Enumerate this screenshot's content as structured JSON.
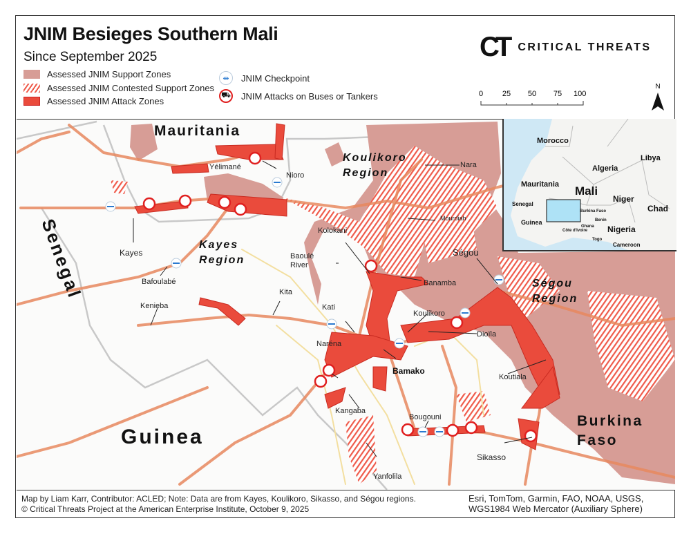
{
  "header": {
    "title": "JNIM Besieges Southern Mali",
    "subtitle": "Since September 2025"
  },
  "legend": {
    "support": "Assessed JNIM Support Zones",
    "contested": "Assessed JNIM Contested Support Zones",
    "attack": "Assessed JNIM Attack Zones",
    "checkpoint": "JNIM Checkpoint",
    "bus_attacks": "JNIM Attacks on Buses or Tankers"
  },
  "colors": {
    "support": "#d79d96",
    "contested": "#ef5a4a",
    "attack": "#ea4b3c",
    "road_major": "#e8895f",
    "road_minor": "#f3dfa0",
    "checkpoint": "#2a7ad0",
    "water": "#cfe8f5"
  },
  "logo": {
    "mark": "CT",
    "text": "CRITICAL THREATS"
  },
  "scale": {
    "ticks": [
      "0",
      "25",
      "50",
      "75",
      "100 Miles"
    ]
  },
  "north": "N",
  "map": {
    "countries": {
      "mauritania": "Mauritania",
      "senegal": "Senegal",
      "guinea": "Guinea",
      "burkina1": "Burkina",
      "burkina2": "Faso"
    },
    "regions": {
      "kayes1": "Kayes",
      "kayes2": "Region",
      "koulikoro1": "Koulikoro",
      "koulikoro2": "Region",
      "segou1": "Ségou",
      "segou2": "Region"
    },
    "places": {
      "yelimane": "Yélimané",
      "nioro": "Nioro",
      "nara": "Nara",
      "kayes": "Kayes",
      "bafoulabe": "Bafoulabé",
      "kenieba": "Kenieba",
      "kita": "Kita",
      "baoule1": "Baoulé",
      "baoule2": "River",
      "kolokani": "Kolokani",
      "mourdiah": "Mourdiah",
      "banamba": "Banamba",
      "segou": "Ségou",
      "kati": "Kati",
      "koulikoro": "Koulikoro",
      "dioila": "Dioïla",
      "narena": "Naréna",
      "bamako": "Bamako",
      "koutiala": "Koutiala",
      "kangaba": "Kangaba",
      "bougouni": "Bougouni",
      "sikasso": "Sikasso",
      "yanfolila": "Yanfolila"
    }
  },
  "inset": {
    "labels": {
      "morocco": "Morocco",
      "algeria": "Algeria",
      "libya": "Libya",
      "mauritania": "Mauritania",
      "mali": "Mali",
      "niger": "Niger",
      "chad": "Chad",
      "senegal": "Senegal",
      "guinea": "Guinea",
      "burkina": "Burkina Faso",
      "benin": "Benin",
      "ghana": "Ghana",
      "cote": "Côte d'Ivoire",
      "togo": "Togo",
      "nigeria": "Nigeria",
      "cameroon": "Cameroon"
    }
  },
  "footer": {
    "credit1": "Map by Liam Karr, Contributor: ACLED; Note: Data are from Kayes, Koulikoro, Sikasso, and Ségou regions.",
    "credit2": "© Critical Threats Project at the American Enterprise Institute, October 9, 2025",
    "source1": "Esri, TomTom, Garmin, FAO, NOAA, USGS,",
    "source2": "WGS1984 Web Mercator (Auxiliary Sphere)"
  }
}
